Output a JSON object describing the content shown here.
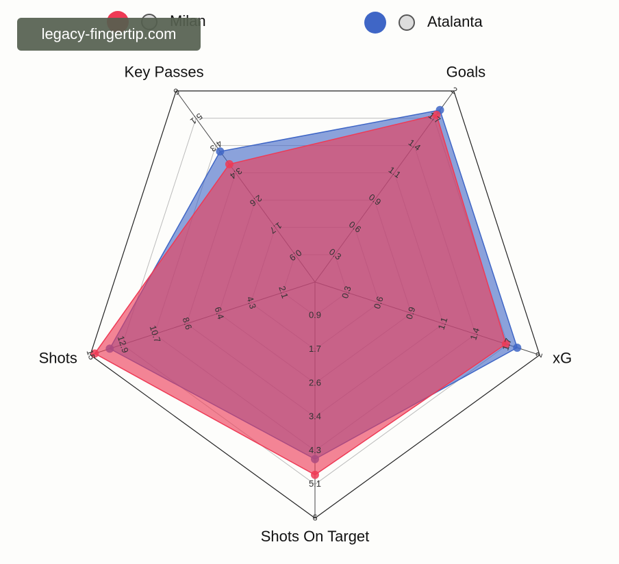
{
  "watermark": "legacy-fingertip.com",
  "chart_data": {
    "type": "radar",
    "axes": [
      {
        "name": "Goals",
        "lim": [
          0,
          2
        ],
        "ticks": [
          {
            "value": 0.2857,
            "label": "0.3"
          },
          {
            "value": 0.5714,
            "label": "0.6"
          },
          {
            "value": 0.8571,
            "label": "0.9"
          },
          {
            "value": 1.1429,
            "label": "1.1"
          },
          {
            "value": 1.4286,
            "label": "1.4"
          },
          {
            "value": 1.7143,
            "label": "1.7"
          },
          2
        ]
      },
      {
        "name": "xG",
        "lim": [
          0,
          2
        ],
        "ticks": [
          {
            "value": 0.2857,
            "label": "0.3"
          },
          {
            "value": 0.5714,
            "label": "0.6"
          },
          {
            "value": 0.8571,
            "label": "0.9"
          },
          {
            "value": 1.1429,
            "label": "1.1"
          },
          {
            "value": 1.4286,
            "label": "1.4"
          },
          {
            "value": 1.7143,
            "label": "1.7"
          },
          2
        ]
      },
      {
        "name": "Shots On Target",
        "lim": [
          0,
          6
        ],
        "ticks": [
          {
            "value": 0.8571,
            "label": "0.9"
          },
          {
            "value": 1.7143,
            "label": "1.7"
          },
          {
            "value": 2.5714,
            "label": "2.6"
          },
          {
            "value": 3.4286,
            "label": "3.4"
          },
          {
            "value": 4.2857,
            "label": "4.3"
          },
          {
            "value": 5.1429,
            "label": "5.1"
          },
          6
        ]
      },
      {
        "name": "Shots",
        "lim": [
          0,
          15
        ],
        "ticks": [
          {
            "value": 2.1429,
            "label": "2.1"
          },
          {
            "value": 4.2857,
            "label": "4.3"
          },
          {
            "value": 6.4286,
            "label": "6.4"
          },
          {
            "value": 8.5714,
            "label": "8.6"
          },
          {
            "value": 10.7143,
            "label": "10.7"
          },
          {
            "value": 12.8571,
            "label": "12.9"
          },
          15
        ]
      },
      {
        "name": "Key Passes",
        "lim": [
          0,
          6
        ],
        "ticks": [
          {
            "value": 0.8571,
            "label": "0.9"
          },
          {
            "value": 1.7143,
            "label": "1.7"
          },
          {
            "value": 2.5714,
            "label": "2.6"
          },
          {
            "value": 3.4286,
            "label": "3.4"
          },
          {
            "value": 4.2857,
            "label": "4.3"
          },
          {
            "value": 5.1429,
            "label": "5.1"
          },
          6
        ]
      }
    ],
    "series": [
      {
        "name": "Atalanta",
        "color": "#3f66c6",
        "values": [
          1.8,
          1.8,
          4.5,
          13.7,
          4.1
        ]
      },
      {
        "name": "Milan",
        "color": "#ee3a55",
        "values": [
          1.75,
          1.7,
          4.9,
          14.7,
          3.7
        ]
      }
    ]
  }
}
